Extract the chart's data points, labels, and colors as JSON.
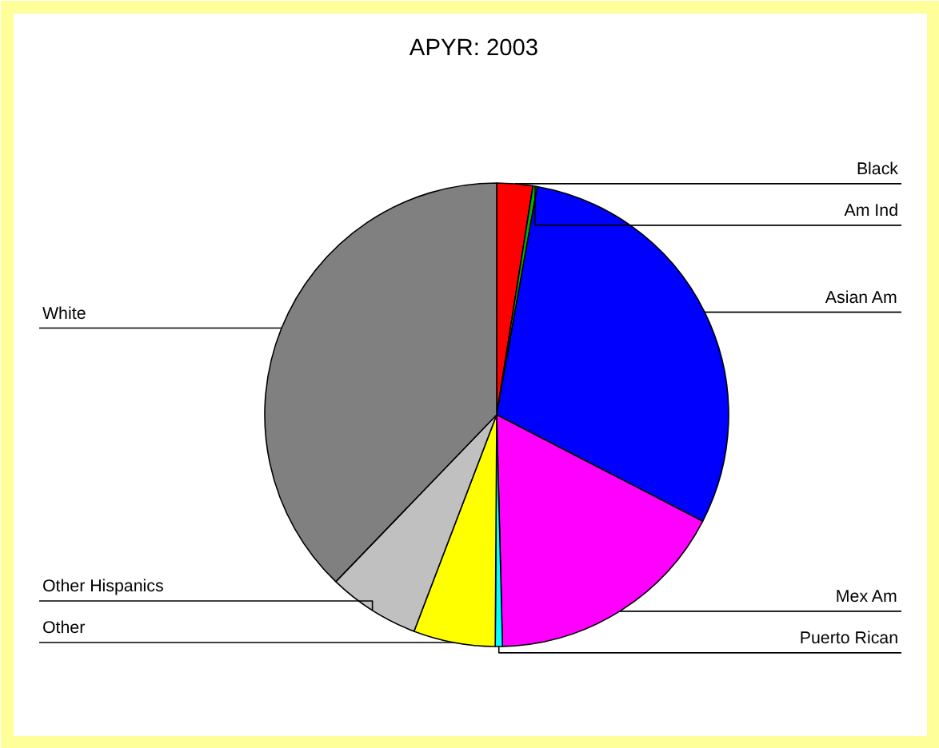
{
  "chart_data": {
    "type": "pie",
    "title": "APYR:        2003",
    "categories": [
      "Black",
      "Am Ind",
      "Asian Am",
      "Mex Am",
      "Puerto Rican",
      "Other",
      "Other Hispanics",
      "White"
    ],
    "values": [
      2.5,
      0.3,
      29.8,
      17.0,
      0.5,
      5.7,
      6.4,
      37.8
    ],
    "colors": [
      "#ff0000",
      "#00b000",
      "#0000ff",
      "#ff00ff",
      "#00ffff",
      "#ffff00",
      "#c0c0c0",
      "#808080"
    ]
  }
}
